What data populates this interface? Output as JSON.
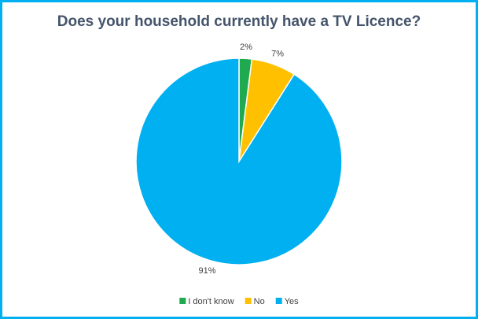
{
  "chart_data": {
    "type": "pie",
    "title": "Does your household currently have a TV Licence?",
    "categories": [
      "I don't know",
      "No",
      "Yes"
    ],
    "values": [
      2,
      7,
      91
    ],
    "value_labels": [
      "2%",
      "7%",
      "91%"
    ],
    "colors": [
      "#1faa4f",
      "#ffc000",
      "#00b0f0"
    ],
    "legend": "bottom"
  }
}
